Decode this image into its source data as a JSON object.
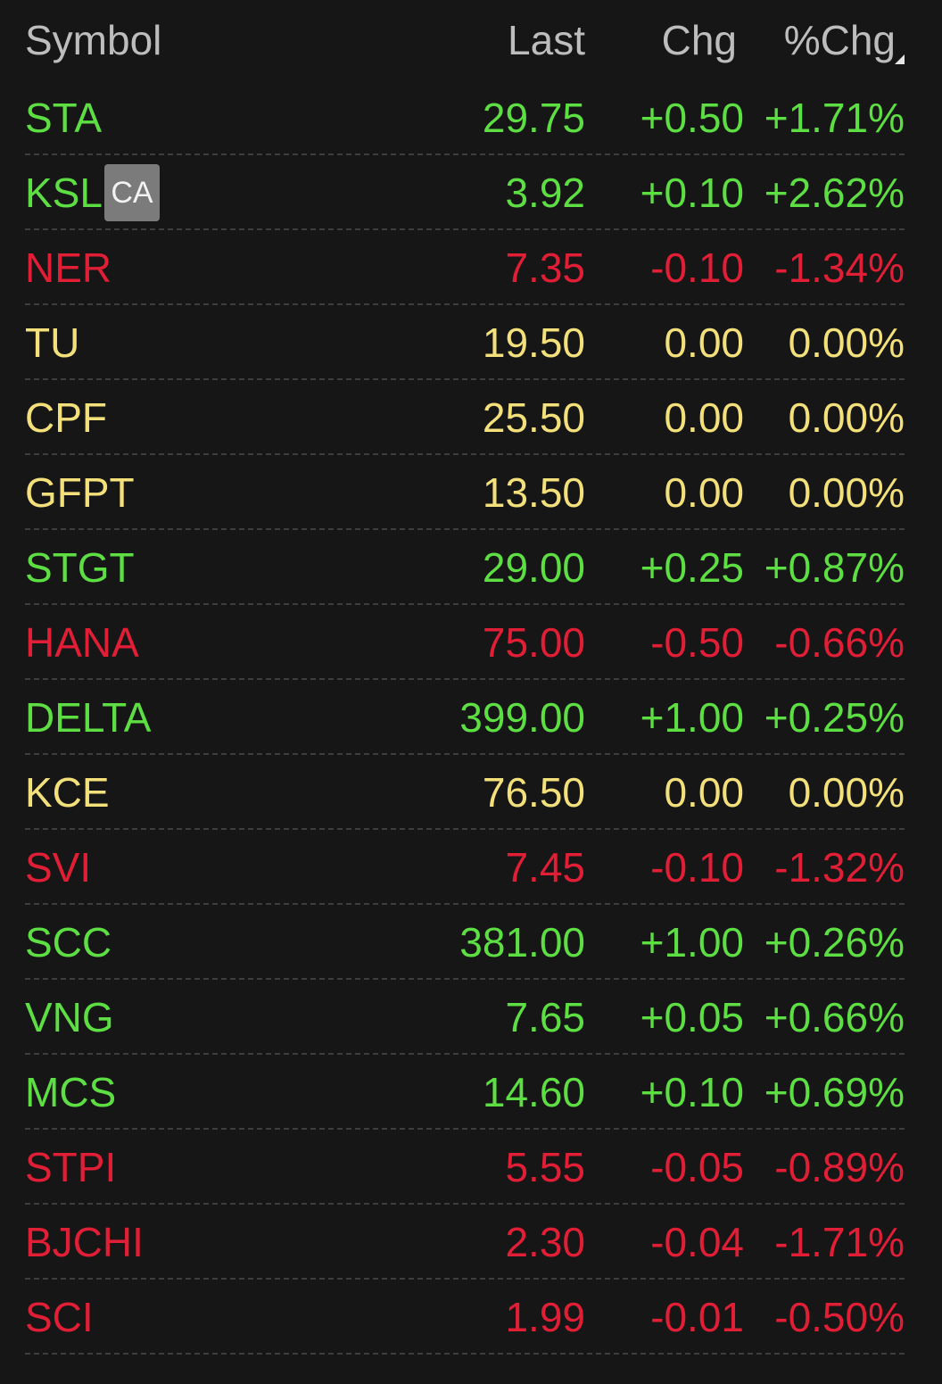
{
  "header": {
    "symbol": "Symbol",
    "last": "Last",
    "chg": "Chg",
    "pchg": "%Chg"
  },
  "colors": {
    "up": "#5dde43",
    "down": "#e01e36",
    "flat": "#f3e07a",
    "background": "#161616"
  },
  "sort_icon": "sort-indicator-icon",
  "rows": [
    {
      "symbol": "STA",
      "last": "29.75",
      "chg": "+0.50",
      "pchg": "+1.71%",
      "trend": "up"
    },
    {
      "symbol": "KSL",
      "badge": "CA",
      "last": "3.92",
      "chg": "+0.10",
      "pchg": "+2.62%",
      "trend": "up"
    },
    {
      "symbol": "NER",
      "last": "7.35",
      "chg": "-0.10",
      "pchg": "-1.34%",
      "trend": "down"
    },
    {
      "symbol": "TU",
      "last": "19.50",
      "chg": "0.00",
      "pchg": "0.00%",
      "trend": "flat"
    },
    {
      "symbol": "CPF",
      "last": "25.50",
      "chg": "0.00",
      "pchg": "0.00%",
      "trend": "flat"
    },
    {
      "symbol": "GFPT",
      "last": "13.50",
      "chg": "0.00",
      "pchg": "0.00%",
      "trend": "flat"
    },
    {
      "symbol": "STGT",
      "last": "29.00",
      "chg": "+0.25",
      "pchg": "+0.87%",
      "trend": "up"
    },
    {
      "symbol": "HANA",
      "last": "75.00",
      "chg": "-0.50",
      "pchg": "-0.66%",
      "trend": "down"
    },
    {
      "symbol": "DELTA",
      "last": "399.00",
      "chg": "+1.00",
      "pchg": "+0.25%",
      "trend": "up"
    },
    {
      "symbol": "KCE",
      "last": "76.50",
      "chg": "0.00",
      "pchg": "0.00%",
      "trend": "flat"
    },
    {
      "symbol": "SVI",
      "last": "7.45",
      "chg": "-0.10",
      "pchg": "-1.32%",
      "trend": "down"
    },
    {
      "symbol": "SCC",
      "last": "381.00",
      "chg": "+1.00",
      "pchg": "+0.26%",
      "trend": "up"
    },
    {
      "symbol": "VNG",
      "last": "7.65",
      "chg": "+0.05",
      "pchg": "+0.66%",
      "trend": "up"
    },
    {
      "symbol": "MCS",
      "last": "14.60",
      "chg": "+0.10",
      "pchg": "+0.69%",
      "trend": "up"
    },
    {
      "symbol": "STPI",
      "last": "5.55",
      "chg": "-0.05",
      "pchg": "-0.89%",
      "trend": "down"
    },
    {
      "symbol": "BJCHI",
      "last": "2.30",
      "chg": "-0.04",
      "pchg": "-1.71%",
      "trend": "down"
    },
    {
      "symbol": "SCI",
      "last": "1.99",
      "chg": "-0.01",
      "pchg": "-0.50%",
      "trend": "down"
    }
  ]
}
